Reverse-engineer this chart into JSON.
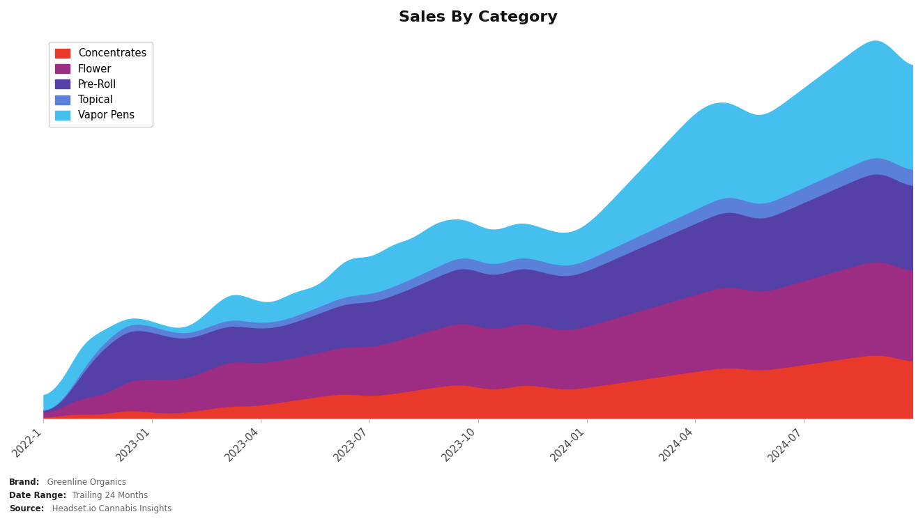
{
  "title": "Sales By Category",
  "categories": [
    "Concentrates",
    "Flower",
    "Pre-Roll",
    "Topical",
    "Vapor Pens"
  ],
  "colors": [
    "#e8392a",
    "#9c2d82",
    "#5540a8",
    "#5a80d8",
    "#45c0ee"
  ],
  "background_color": "#ffffff",
  "title_fontsize": 16,
  "legend_fontsize": 10.5,
  "footer_lines": [
    [
      "Brand:",
      " Greenline Organics"
    ],
    [
      "Date Range:",
      " Trailing 24 Months"
    ],
    [
      "Source:",
      " Headset.io Cannabis Insights"
    ]
  ],
  "x_tick_labels": [
    "2022-1",
    "2023-01",
    "2023-04",
    "2023-07",
    "2023-10",
    "2024-01",
    "2024-04",
    "2024-07"
  ],
  "x_tick_months_from_start": [
    0,
    3,
    6,
    9,
    12,
    15,
    18,
    21
  ],
  "total_months": 24,
  "n_points": 200,
  "concentrates": [
    100,
    120,
    150,
    200,
    280,
    350,
    400,
    420,
    400,
    380,
    350,
    320,
    350,
    380,
    400,
    420,
    500,
    600,
    700,
    750,
    720,
    680,
    640,
    600,
    560,
    520,
    480,
    460,
    450,
    460,
    470,
    480,
    500,
    550,
    600,
    650,
    700,
    750,
    800,
    850,
    900,
    950,
    1000,
    1050,
    1050,
    1050,
    1000,
    980,
    1000,
    1050,
    1100,
    1150,
    1200,
    1250,
    1300,
    1350,
    1400,
    1450,
    1500,
    1550,
    1600,
    1650,
    1700,
    1750,
    1800,
    1850,
    1900,
    1950,
    2000,
    2000,
    1980,
    1950,
    1900,
    1850,
    1800,
    1780,
    1800,
    1850,
    1900,
    1950,
    2000,
    2050,
    2100,
    2150,
    2200,
    2250,
    2300,
    2350,
    2400,
    2450,
    2500,
    2550,
    2600,
    2650,
    2700,
    2750,
    2800,
    2700,
    2600,
    2500,
    2400,
    2350,
    2300,
    2280,
    2300,
    2350,
    2400,
    2500,
    2600,
    2700,
    2750,
    2700,
    2650,
    2600,
    2550,
    2500,
    2450,
    2400,
    2350,
    2300,
    2280,
    2300,
    2350,
    2400,
    2450,
    2500,
    2550,
    2600,
    2650,
    2700,
    2750,
    2800,
    2850,
    2900,
    2950,
    3000,
    3050,
    3100,
    3150,
    3200,
    3250,
    3300,
    3350,
    3400,
    3450,
    3500,
    3550,
    3600,
    3650,
    3700,
    3750,
    3800,
    3850,
    3900,
    3950,
    4000,
    4050,
    4100,
    4050,
    4000,
    3950,
    3900,
    3850,
    3800,
    3780,
    3800,
    3850,
    3900,
    3950,
    4000,
    4050,
    4100,
    4150,
    4200,
    4250,
    4300,
    4350,
    4400,
    4450,
    4500,
    4550,
    4600,
    4650,
    4700,
    4750,
    4800,
    4850,
    4900,
    4950,
    5000,
    5050,
    5100,
    5100,
    5000,
    4900,
    4800,
    4700,
    4600,
    4500,
    4400
  ],
  "flower": [
    300,
    350,
    400,
    450,
    550,
    700,
    900,
    1100,
    1200,
    1300,
    1350,
    1400,
    1450,
    1500,
    1550,
    1600,
    1700,
    1900,
    2100,
    2300,
    2400,
    2450,
    2500,
    2550,
    2600,
    2620,
    2640,
    2650,
    2640,
    2620,
    2600,
    2580,
    2600,
    2650,
    2700,
    2800,
    2900,
    3000,
    3100,
    3200,
    3300,
    3400,
    3500,
    3550,
    3520,
    3480,
    3440,
    3400,
    3360,
    3320,
    3300,
    3280,
    3260,
    3240,
    3260,
    3280,
    3300,
    3320,
    3340,
    3360,
    3380,
    3400,
    3420,
    3440,
    3460,
    3500,
    3550,
    3600,
    3650,
    3700,
    3720,
    3740,
    3760,
    3780,
    3800,
    3820,
    3850,
    3900,
    3950,
    4000,
    4050,
    4100,
    4150,
    4200,
    4250,
    4300,
    4350,
    4400,
    4450,
    4500,
    4550,
    4600,
    4650,
    4700,
    4750,
    4800,
    4850,
    4900,
    4850,
    4800,
    4750,
    4700,
    4680,
    4660,
    4680,
    4700,
    4750,
    4800,
    4850,
    4900,
    4850,
    4800,
    4750,
    4720,
    4700,
    4680,
    4660,
    4640,
    4620,
    4600,
    4620,
    4640,
    4660,
    4700,
    4750,
    4800,
    4850,
    4900,
    4950,
    5000,
    5050,
    5100,
    5150,
    5200,
    5250,
    5300,
    5350,
    5400,
    5450,
    5500,
    5550,
    5600,
    5650,
    5700,
    5750,
    5800,
    5850,
    5900,
    5950,
    6000,
    6050,
    6100,
    6150,
    6200,
    6250,
    6300,
    6350,
    6400,
    6350,
    6300,
    6250,
    6200,
    6150,
    6100,
    6080,
    6100,
    6150,
    6200,
    6250,
    6300,
    6350,
    6400,
    6450,
    6500,
    6550,
    6600,
    6650,
    6700,
    6750,
    6800,
    6850,
    6900,
    6950,
    7000,
    7050,
    7100,
    7150,
    7200,
    7250,
    7300,
    7350,
    7400,
    7350,
    7300,
    7250,
    7200,
    7150,
    7100,
    7050,
    7000
  ],
  "preroll": [
    50,
    80,
    120,
    180,
    300,
    500,
    800,
    1200,
    1600,
    2000,
    2400,
    2800,
    3200,
    3500,
    3700,
    3800,
    3900,
    3950,
    3980,
    4000,
    3950,
    3900,
    3850,
    3800,
    3720,
    3640,
    3560,
    3480,
    3400,
    3320,
    3240,
    3160,
    3100,
    3050,
    3000,
    2980,
    2960,
    2940,
    2920,
    2900,
    2880,
    2860,
    2840,
    2820,
    2800,
    2780,
    2760,
    2740,
    2720,
    2700,
    2680,
    2660,
    2640,
    2620,
    2640,
    2660,
    2700,
    2750,
    2800,
    2850,
    2900,
    2950,
    3000,
    3050,
    3100,
    3150,
    3200,
    3250,
    3300,
    3350,
    3400,
    3420,
    3440,
    3460,
    3480,
    3500,
    3520,
    3540,
    3560,
    3580,
    3600,
    3620,
    3650,
    3700,
    3750,
    3800,
    3850,
    3900,
    3950,
    4000,
    4050,
    4100,
    4150,
    4200,
    4250,
    4300,
    4350,
    4400,
    4350,
    4300,
    4260,
    4220,
    4200,
    4180,
    4200,
    4220,
    4260,
    4300,
    4340,
    4380,
    4350,
    4320,
    4300,
    4280,
    4260,
    4240,
    4220,
    4200,
    4180,
    4160,
    4180,
    4200,
    4220,
    4260,
    4300,
    4350,
    4400,
    4450,
    4500,
    4550,
    4600,
    4650,
    4700,
    4750,
    4800,
    4850,
    4900,
    4950,
    5000,
    5050,
    5100,
    5150,
    5200,
    5250,
    5300,
    5350,
    5400,
    5450,
    5500,
    5550,
    5600,
    5650,
    5700,
    5750,
    5800,
    5850,
    5900,
    5950,
    5900,
    5850,
    5800,
    5750,
    5700,
    5650,
    5620,
    5650,
    5700,
    5750,
    5800,
    5850,
    5900,
    5950,
    6000,
    6050,
    6100,
    6150,
    6200,
    6250,
    6300,
    6350,
    6400,
    6450,
    6500,
    6550,
    6600,
    6650,
    6700,
    6750,
    6800,
    6850,
    6900,
    6950,
    6900,
    6850,
    6800,
    6750,
    6700,
    6650,
    6600,
    6550
  ],
  "topical": [
    20,
    25,
    30,
    40,
    60,
    90,
    130,
    180,
    230,
    280,
    320,
    360,
    390,
    410,
    430,
    450,
    470,
    490,
    510,
    530,
    520,
    510,
    500,
    490,
    480,
    470,
    460,
    450,
    440,
    430,
    420,
    410,
    405,
    400,
    400,
    405,
    410,
    420,
    430,
    440,
    450,
    460,
    470,
    480,
    475,
    470,
    465,
    460,
    455,
    450,
    445,
    440,
    435,
    430,
    435,
    440,
    450,
    460,
    470,
    480,
    490,
    500,
    510,
    520,
    530,
    540,
    550,
    560,
    570,
    580,
    590,
    600,
    610,
    620,
    630,
    640,
    650,
    660,
    670,
    680,
    690,
    700,
    710,
    720,
    730,
    740,
    750,
    760,
    770,
    780,
    790,
    800,
    810,
    820,
    830,
    840,
    850,
    860,
    855,
    850,
    845,
    840,
    838,
    836,
    838,
    840,
    845,
    850,
    855,
    860,
    855,
    850,
    845,
    840,
    836,
    832,
    828,
    824,
    820,
    816,
    820,
    824,
    828,
    836,
    845,
    855,
    865,
    875,
    885,
    895,
    905,
    915,
    925,
    935,
    945,
    955,
    965,
    975,
    985,
    995,
    1005,
    1015,
    1025,
    1035,
    1045,
    1055,
    1065,
    1075,
    1085,
    1095,
    1105,
    1115,
    1125,
    1135,
    1145,
    1155,
    1165,
    1175,
    1170,
    1165,
    1160,
    1155,
    1150,
    1145,
    1142,
    1145,
    1150,
    1155,
    1160,
    1165,
    1170,
    1175,
    1180,
    1185,
    1190,
    1195,
    1200,
    1205,
    1210,
    1215,
    1220,
    1225,
    1230,
    1235,
    1240,
    1245,
    1250,
    1255,
    1260,
    1265,
    1270,
    1275,
    1275,
    1270,
    1265,
    1260,
    1255,
    1250,
    1245,
    1240
  ],
  "vapor_pens": [
    800,
    1000,
    1400,
    1600,
    1400,
    1200,
    1500,
    2000,
    2500,
    2200,
    1800,
    1500,
    1200,
    1000,
    900,
    800,
    700,
    600,
    500,
    450,
    420,
    400,
    380,
    360,
    340,
    320,
    300,
    290,
    280,
    270,
    260,
    280,
    300,
    350,
    450,
    600,
    800,
    1000,
    1200,
    1400,
    1600,
    1800,
    2000,
    2200,
    2100,
    2000,
    1900,
    1800,
    1700,
    1600,
    1500,
    1400,
    1350,
    1400,
    1500,
    1700,
    1900,
    2000,
    1900,
    1800,
    1700,
    1600,
    1550,
    1500,
    1600,
    1800,
    2100,
    2400,
    2700,
    3000,
    3100,
    3000,
    2900,
    2800,
    2750,
    2700,
    2750,
    2900,
    3100,
    3300,
    3500,
    3400,
    3200,
    3000,
    2900,
    2950,
    3050,
    3200,
    3400,
    3600,
    3500,
    3400,
    3300,
    3200,
    3100,
    3000,
    2900,
    2800,
    2750,
    2700,
    2650,
    2600,
    2580,
    2560,
    2580,
    2600,
    2650,
    2700,
    2750,
    2700,
    2650,
    2600,
    2580,
    2560,
    2540,
    2520,
    2500,
    2480,
    2460,
    2440,
    2460,
    2480,
    2520,
    2580,
    2650,
    2750,
    2900,
    3100,
    3300,
    3500,
    3700,
    3900,
    4100,
    4300,
    4500,
    4700,
    4900,
    5100,
    5300,
    5500,
    5700,
    5900,
    6100,
    6300,
    6500,
    6700,
    6900,
    7100,
    7300,
    7500,
    7700,
    7800,
    7750,
    7700,
    7600,
    7500,
    7400,
    7300,
    7200,
    7100,
    7000,
    6900,
    6800,
    6700,
    6750,
    6800,
    6900,
    7000,
    7100,
    7200,
    7300,
    7400,
    7500,
    7600,
    7700,
    7800,
    7900,
    8000,
    8100,
    8200,
    8300,
    8400,
    8500,
    8600,
    8700,
    8800,
    8900,
    9000,
    9100,
    9200,
    9300,
    9400,
    9200,
    9000,
    8800,
    8600,
    8400,
    8200,
    8000,
    7800
  ]
}
